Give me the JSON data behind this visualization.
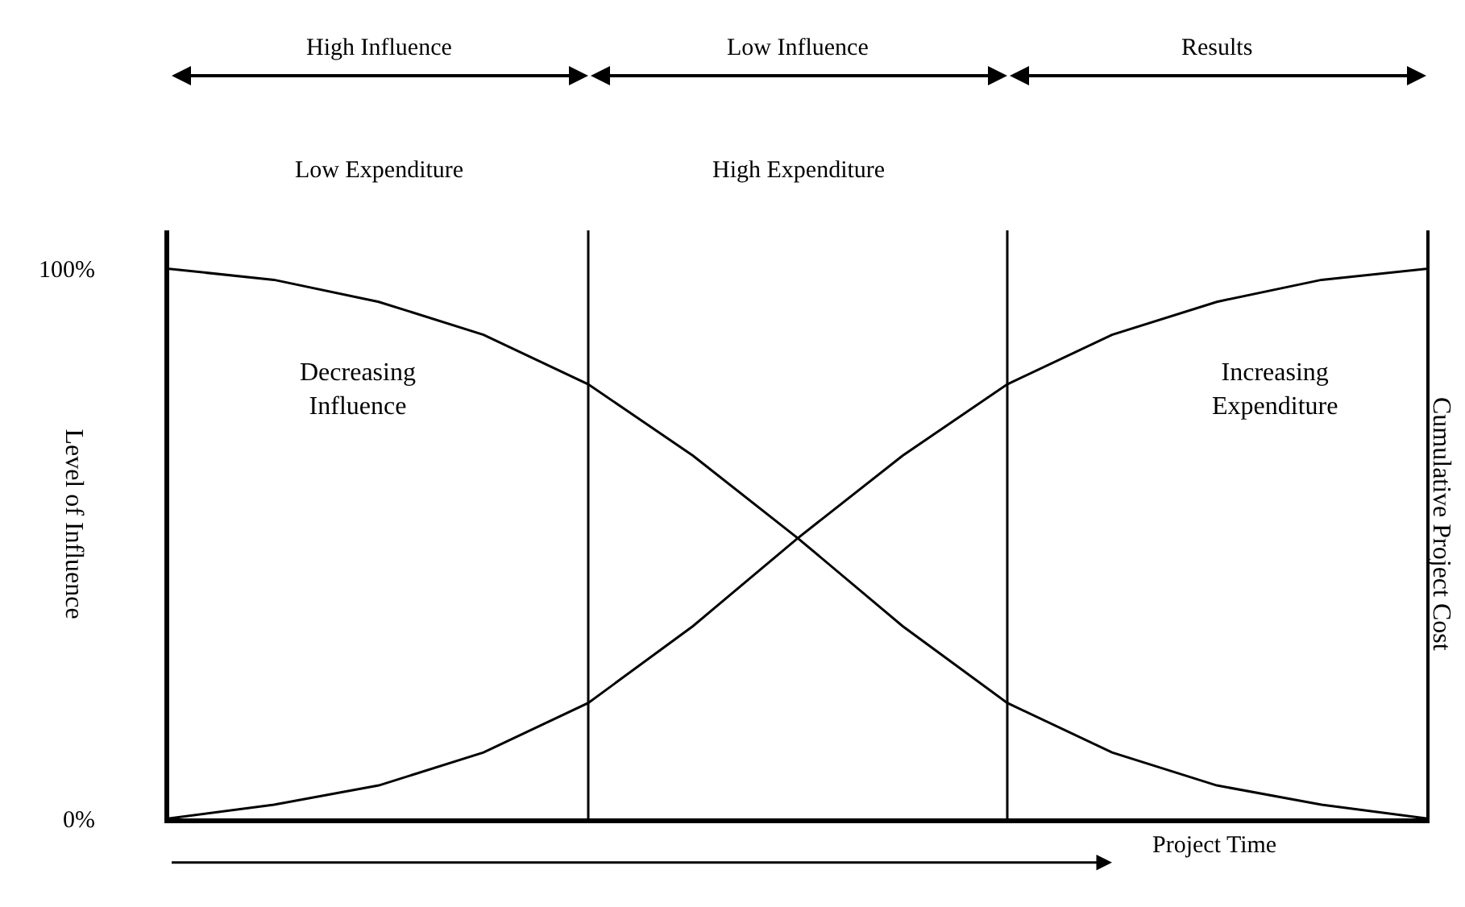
{
  "chart_data": {
    "type": "line",
    "ylabel": "Level of Influence",
    "y2label": "Cumulative Project Cost",
    "categories": [
      null,
      null,
      null,
      null,
      null,
      null,
      null,
      null,
      null,
      null,
      null,
      null,
      null
    ],
    "series": [
      {
        "color": "#000000",
        "values": [
          100,
          98,
          94,
          88,
          79,
          66,
          51,
          35,
          21,
          12,
          6,
          2.5,
          0
        ]
      },
      {
        "color": "#000000",
        "values": [
          0,
          2.5,
          6,
          12,
          21,
          35,
          51,
          66,
          79,
          88,
          94,
          98,
          100
        ]
      }
    ],
    "ylim": [
      0,
      107
    ],
    "yticks": [
      {
        "value": 0,
        "label": "0%"
      },
      {
        "value": 100,
        "label": "100%"
      }
    ],
    "tick_labels": "y",
    "marker": "none",
    "line_style": "solid",
    "annotations": [
      "High Influence",
      "Low Influence",
      "Results",
      "Low Expenditure",
      "High Expenditure",
      "Decreasing\nInfluence",
      "Increasing\nExpenditure",
      "Project Time"
    ]
  }
}
